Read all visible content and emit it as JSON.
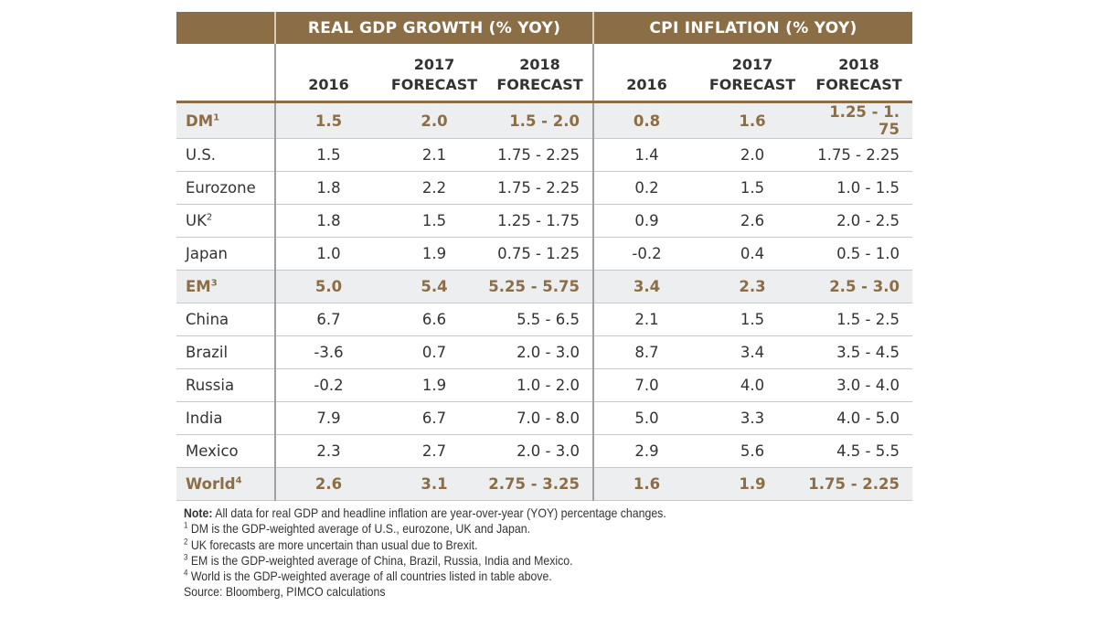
{
  "table": {
    "group_headers": {
      "gdp": "REAL GDP GROWTH (% YOY)",
      "cpi": "CPI INFLATION (% YOY)"
    },
    "column_headers": {
      "gdp": [
        {
          "line1": "",
          "line2": "2016"
        },
        {
          "line1": "2017",
          "line2": "FORECAST"
        },
        {
          "line1": "2018",
          "line2": "FORECAST"
        }
      ],
      "cpi": [
        {
          "line1": "",
          "line2": "2016"
        },
        {
          "line1": "2017",
          "line2": "FORECAST"
        },
        {
          "line1": "2018",
          "line2": "FORECAST"
        }
      ]
    },
    "rows": [
      {
        "label": "DM",
        "sup": "1",
        "summary": true,
        "gdp": [
          "1.5",
          "2.0",
          "1.5 - 2.0"
        ],
        "cpi": [
          "0.8",
          "1.6",
          "1.25 - 1. 75"
        ]
      },
      {
        "label": "U.S.",
        "sup": "",
        "summary": false,
        "gdp": [
          "1.5",
          "2.1",
          "1.75 - 2.25"
        ],
        "cpi": [
          "1.4",
          "2.0",
          "1.75 - 2.25"
        ]
      },
      {
        "label": "Eurozone",
        "sup": "",
        "summary": false,
        "gdp": [
          "1.8",
          "2.2",
          "1.75 - 2.25"
        ],
        "cpi": [
          "0.2",
          "1.5",
          "1.0 - 1.5"
        ]
      },
      {
        "label": "UK",
        "sup": "2",
        "summary": false,
        "gdp": [
          "1.8",
          "1.5",
          "1.25 - 1.75"
        ],
        "cpi": [
          "0.9",
          "2.6",
          "2.0 - 2.5"
        ]
      },
      {
        "label": "Japan",
        "sup": "",
        "summary": false,
        "gdp": [
          "1.0",
          "1.9",
          "0.75 - 1.25"
        ],
        "cpi": [
          "-0.2",
          "0.4",
          "0.5 - 1.0"
        ]
      },
      {
        "label": "EM",
        "sup": "3",
        "summary": true,
        "gdp": [
          "5.0",
          "5.4",
          "5.25 - 5.75"
        ],
        "cpi": [
          "3.4",
          "2.3",
          "2.5 - 3.0"
        ]
      },
      {
        "label": "China",
        "sup": "",
        "summary": false,
        "gdp": [
          "6.7",
          "6.6",
          "5.5 - 6.5"
        ],
        "cpi": [
          "2.1",
          "1.5",
          "1.5 - 2.5"
        ]
      },
      {
        "label": "Brazil",
        "sup": "",
        "summary": false,
        "gdp": [
          "-3.6",
          "0.7",
          "2.0 - 3.0"
        ],
        "cpi": [
          "8.7",
          "3.4",
          "3.5 - 4.5"
        ]
      },
      {
        "label": "Russia",
        "sup": "",
        "summary": false,
        "gdp": [
          "-0.2",
          "1.9",
          "1.0 - 2.0"
        ],
        "cpi": [
          "7.0",
          "4.0",
          "3.0 - 4.0"
        ]
      },
      {
        "label": "India",
        "sup": "",
        "summary": false,
        "gdp": [
          "7.9",
          "6.7",
          "7.0 - 8.0"
        ],
        "cpi": [
          "5.0",
          "3.3",
          "4.0 - 5.0"
        ]
      },
      {
        "label": "Mexico",
        "sup": "",
        "summary": false,
        "gdp": [
          "2.3",
          "2.7",
          "2.0 - 3.0"
        ],
        "cpi": [
          "2.9",
          "5.6",
          "4.5 - 5.5"
        ]
      },
      {
        "label": "World",
        "sup": "4",
        "summary": true,
        "gdp": [
          "2.6",
          "3.1",
          "2.75 - 3.25"
        ],
        "cpi": [
          "1.6",
          "1.9",
          "1.75 - 2.25"
        ]
      }
    ]
  },
  "notes": {
    "note_label": "Note:",
    "note_text": " All data for real GDP and headline inflation are year-over-year (YOY) percentage changes.",
    "footnotes": [
      {
        "sup": "1",
        "text": " DM is the GDP-weighted average of U.S., eurozone, UK and Japan."
      },
      {
        "sup": "2",
        "text": " UK forecasts are more uncertain than usual due to Brexit."
      },
      {
        "sup": "3",
        "text": " EM is the GDP-weighted average of China, Brazil, Russia, India and Mexico."
      },
      {
        "sup": "4",
        "text": " World is the GDP-weighted average of all countries listed in table above."
      }
    ],
    "source": "Source: Bloomberg, PIMCO calculations"
  },
  "colors": {
    "brand_header": "#8c6e46",
    "summary_row_bg": "#eceeef",
    "summary_text": "#8c6e46",
    "body_text": "#333333"
  }
}
